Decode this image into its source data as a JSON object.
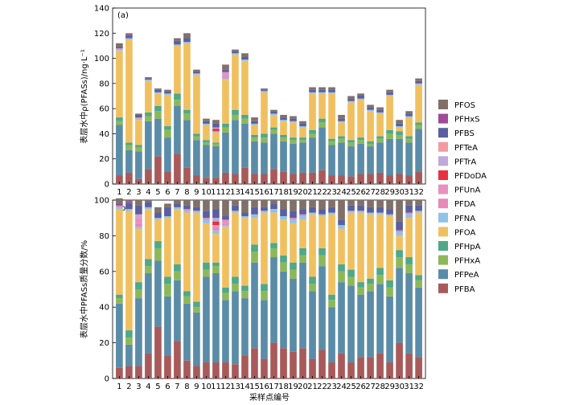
{
  "chart_data": [
    {
      "panel": "(a)",
      "type": "bar",
      "stacked": true,
      "ylabel": "表层水中ρ(PFASs)/ng·L⁻¹",
      "xlabel": "",
      "ylim": [
        0,
        140
      ],
      "yticks": [
        0,
        20,
        40,
        60,
        80,
        100,
        120,
        140
      ],
      "categories": [
        "1",
        "2",
        "3",
        "4",
        "5",
        "6",
        "7",
        "8",
        "9",
        "10",
        "11",
        "12",
        "13",
        "14",
        "15",
        "16",
        "17",
        "18",
        "19",
        "20",
        "21",
        "22",
        "23",
        "24",
        "25",
        "26",
        "27",
        "28",
        "29",
        "30",
        "31",
        "32"
      ],
      "series": [
        {
          "name": "PFBA",
          "values": [
            7,
            9,
            4,
            12,
            22,
            10,
            24,
            13,
            7,
            5,
            5,
            9,
            8,
            13,
            8,
            8,
            12,
            10,
            8,
            9,
            9,
            11,
            7,
            7,
            6,
            8,
            8,
            9,
            7,
            8,
            7,
            10
          ]
        },
        {
          "name": "PFPeA",
          "values": [
            40,
            18,
            22,
            38,
            30,
            27,
            38,
            38,
            28,
            26,
            25,
            32,
            43,
            35,
            26,
            25,
            28,
            24,
            24,
            24,
            28,
            34,
            24,
            26,
            24,
            24,
            22,
            24,
            29,
            28,
            26,
            34
          ]
        },
        {
          "name": "PFHxA",
          "values": [
            3,
            4,
            3,
            4,
            6,
            6,
            5,
            5,
            3,
            2,
            2,
            4,
            4,
            4,
            3,
            4,
            3,
            3,
            3,
            2,
            3,
            4,
            3,
            3,
            3,
            3,
            2,
            3,
            4,
            3,
            3,
            3
          ]
        },
        {
          "name": "PFHpA",
          "values": [
            3,
            2,
            2,
            3,
            4,
            3,
            5,
            3,
            2,
            2,
            1,
            3,
            4,
            3,
            2,
            3,
            2,
            2,
            2,
            2,
            3,
            3,
            2,
            2,
            2,
            2,
            2,
            2,
            3,
            3,
            2,
            2
          ]
        },
        {
          "name": "PFOA",
          "values": [
            53,
            82,
            20,
            25,
            10,
            25,
            38,
            53,
            47,
            12,
            8,
            35,
            44,
            43,
            8,
            33,
            10,
            11,
            12,
            8,
            29,
            20,
            36,
            11,
            30,
            30,
            24,
            18,
            27,
            3,
            15,
            30
          ]
        },
        {
          "name": "PFNA",
          "values": [
            1,
            1,
            1,
            1,
            1,
            1,
            1,
            1,
            1,
            1,
            1,
            1,
            1,
            1,
            1,
            1,
            1,
            1,
            1,
            1,
            1,
            1,
            1,
            1,
            1,
            1,
            1,
            1,
            1,
            1,
            1,
            1
          ]
        },
        {
          "name": "PFDA",
          "values": [
            1,
            0,
            1,
            0,
            0,
            0,
            0,
            0,
            0,
            0,
            0,
            1,
            0,
            0,
            0,
            0,
            0,
            0,
            0,
            0,
            0,
            0,
            0,
            0,
            0,
            0,
            0,
            0,
            0,
            0,
            0,
            0
          ]
        },
        {
          "name": "PFUnA",
          "values": [
            0,
            0,
            0,
            0,
            0,
            0,
            0,
            0,
            0,
            0,
            0,
            4,
            0,
            0,
            0,
            0,
            0,
            0,
            0,
            0,
            0,
            0,
            0,
            0,
            0,
            0,
            0,
            0,
            0,
            0,
            0,
            0
          ]
        },
        {
          "name": "PFDoDA",
          "values": [
            0,
            0,
            0,
            0,
            0,
            0,
            0,
            0,
            0,
            0,
            2,
            0,
            0,
            0,
            0,
            0,
            0,
            0,
            0,
            0,
            0,
            0,
            0,
            0,
            0,
            0,
            0,
            0,
            0,
            0,
            0,
            0
          ]
        },
        {
          "name": "PFTrA",
          "values": [
            0,
            0,
            0,
            0,
            0,
            0,
            0,
            0,
            0,
            0,
            1,
            0,
            0,
            0,
            0,
            0,
            0,
            0,
            0,
            0,
            0,
            0,
            0,
            0,
            0,
            0,
            0,
            0,
            0,
            0,
            0,
            0
          ]
        },
        {
          "name": "PFTeA",
          "values": [
            0,
            0,
            0,
            0,
            0,
            0,
            0,
            0,
            0,
            0,
            0,
            0,
            0,
            0,
            0,
            0,
            0,
            0,
            0,
            0,
            0,
            0,
            0,
            0,
            0,
            0,
            0,
            0,
            0,
            0,
            0,
            0
          ]
        },
        {
          "name": "PFBS",
          "values": [
            1,
            2,
            2,
            1,
            2,
            2,
            3,
            3,
            2,
            2,
            3,
            2,
            2,
            2,
            2,
            1,
            2,
            2,
            2,
            2,
            2,
            2,
            2,
            2,
            2,
            2,
            2,
            2,
            2,
            2,
            2,
            2
          ]
        },
        {
          "name": "PFHxS",
          "values": [
            0,
            1,
            0,
            0,
            0,
            0,
            0,
            0,
            0,
            0,
            0,
            0,
            0,
            0,
            0,
            0,
            0,
            0,
            0,
            0,
            0,
            0,
            0,
            0,
            0,
            0,
            0,
            0,
            0,
            0,
            0,
            0
          ]
        },
        {
          "name": "PFOS",
          "values": [
            3,
            1,
            1,
            1,
            1,
            1,
            2,
            4,
            1,
            2,
            3,
            4,
            1,
            3,
            3,
            1,
            1,
            2,
            2,
            2,
            2,
            2,
            2,
            3,
            2,
            2,
            2,
            2,
            2,
            3,
            2,
            2
          ]
        }
      ]
    },
    {
      "panel": "(b)",
      "type": "bar",
      "stacked": true,
      "ylabel": "表层水中PFASs质量分数/%",
      "xlabel": "采样点编号",
      "ylim": [
        0,
        100
      ],
      "yticks": [
        0,
        20,
        40,
        60,
        80,
        100
      ],
      "categories": [
        "1",
        "2",
        "3",
        "4",
        "5",
        "6",
        "7",
        "8",
        "9",
        "10",
        "11",
        "12",
        "13",
        "14",
        "15",
        "16",
        "17",
        "18",
        "19",
        "20",
        "21",
        "22",
        "23",
        "24",
        "25",
        "26",
        "27",
        "28",
        "29",
        "30",
        "31",
        "32"
      ],
      "series": [
        {
          "name": "PFBA",
          "values": [
            6,
            7,
            7,
            14,
            29,
            13,
            21,
            10,
            7,
            9,
            9,
            9,
            8,
            13,
            17,
            11,
            20,
            17,
            15,
            17,
            11,
            16,
            9,
            14,
            9,
            12,
            12,
            14,
            9,
            20,
            14,
            12
          ]
        },
        {
          "name": "PFPeA",
          "values": [
            36,
            12,
            38,
            45,
            37,
            33,
            34,
            32,
            30,
            48,
            50,
            35,
            41,
            32,
            48,
            33,
            48,
            43,
            41,
            48,
            38,
            47,
            31,
            40,
            43,
            35,
            37,
            39,
            37,
            42,
            45,
            39
          ]
        },
        {
          "name": "PFHxA",
          "values": [
            3,
            4,
            5,
            4,
            7,
            7,
            5,
            4,
            3,
            4,
            4,
            4,
            4,
            4,
            6,
            5,
            5,
            5,
            5,
            4,
            4,
            6,
            4,
            6,
            5,
            4,
            4,
            5,
            5,
            6,
            5,
            4
          ]
        },
        {
          "name": "PFHpA",
          "values": [
            2,
            4,
            4,
            4,
            4,
            4,
            4,
            3,
            3,
            4,
            2,
            3,
            4,
            3,
            4,
            4,
            3,
            4,
            4,
            4,
            4,
            4,
            3,
            4,
            4,
            3,
            3,
            4,
            4,
            4,
            4,
            3
          ]
        },
        {
          "name": "PFOA",
          "values": [
            48,
            67,
            30,
            28,
            12,
            33,
            31,
            44,
            50,
            22,
            16,
            34,
            36,
            38,
            15,
            40,
            17,
            20,
            22,
            16,
            35,
            18,
            45,
            20,
            32,
            39,
            36,
            30,
            36,
            8,
            22,
            35
          ]
        },
        {
          "name": "PFNA",
          "values": [
            1,
            1,
            1,
            1,
            1,
            1,
            1,
            1,
            1,
            2,
            2,
            1,
            1,
            1,
            2,
            1,
            2,
            2,
            2,
            2,
            1,
            1,
            1,
            2,
            1,
            1,
            1,
            1,
            1,
            2,
            2,
            1
          ]
        },
        {
          "name": "PFDA",
          "values": [
            1,
            0,
            2,
            0,
            0,
            0,
            0,
            1,
            0,
            1,
            2,
            1,
            0,
            0,
            0,
            0,
            0,
            0,
            1,
            1,
            0,
            0,
            0,
            0,
            0,
            0,
            0,
            0,
            0,
            1,
            1,
            0
          ]
        },
        {
          "name": "PFUnA",
          "values": [
            0,
            0,
            3,
            0,
            0,
            0,
            0,
            0,
            0,
            0,
            1,
            2,
            0,
            0,
            0,
            0,
            0,
            0,
            0,
            0,
            0,
            0,
            0,
            0,
            0,
            0,
            0,
            0,
            0,
            0,
            0,
            0
          ]
        },
        {
          "name": "PFDoDA",
          "values": [
            0,
            0,
            0,
            0,
            0,
            0,
            0,
            0,
            0,
            0,
            2,
            0,
            0,
            0,
            0,
            0,
            0,
            0,
            0,
            0,
            0,
            0,
            0,
            0,
            0,
            0,
            0,
            0,
            0,
            0,
            0,
            0
          ]
        },
        {
          "name": "PFTrA",
          "values": [
            0,
            0,
            1,
            0,
            0,
            0,
            0,
            0,
            0,
            0,
            2,
            0,
            0,
            0,
            0,
            0,
            0,
            0,
            0,
            0,
            0,
            0,
            0,
            0,
            0,
            0,
            0,
            0,
            0,
            0,
            0,
            0
          ]
        },
        {
          "name": "PFTeA",
          "values": [
            0,
            0,
            1,
            0,
            0,
            0,
            0,
            0,
            0,
            0,
            0,
            0,
            0,
            0,
            0,
            0,
            0,
            0,
            0,
            0,
            0,
            0,
            0,
            0,
            0,
            0,
            0,
            0,
            0,
            0,
            0,
            0
          ]
        },
        {
          "name": "PFBS",
          "values": [
            1,
            3,
            5,
            3,
            3,
            5,
            2,
            2,
            2,
            4,
            5,
            2,
            3,
            2,
            4,
            2,
            3,
            4,
            4,
            3,
            3,
            3,
            3,
            3,
            3,
            3,
            3,
            3,
            3,
            5,
            4,
            3
          ]
        },
        {
          "name": "PFHxS",
          "values": [
            0,
            1,
            0,
            0,
            0,
            0,
            0,
            0,
            0,
            0,
            0,
            0,
            0,
            0,
            0,
            0,
            0,
            0,
            0,
            0,
            0,
            0,
            0,
            0,
            0,
            0,
            0,
            0,
            0,
            0,
            0,
            0
          ]
        },
        {
          "name": "PFOS",
          "values": [
            3,
            1,
            3,
            1,
            3,
            2,
            2,
            3,
            4,
            6,
            5,
            9,
            3,
            7,
            4,
            4,
            2,
            5,
            6,
            5,
            4,
            5,
            4,
            11,
            3,
            3,
            4,
            4,
            5,
            12,
            3,
            3
          ]
        }
      ]
    }
  ],
  "legend": {
    "placement": "right",
    "order_top_to_bottom": [
      "PFOS",
      "PFHxS",
      "PFBS",
      "PFTeA",
      "PFTrA",
      "PFDoDA",
      "PFUnA",
      "PFDA",
      "PFNA",
      "PFOA",
      "PFHpA",
      "PFHxA",
      "PFPeA",
      "PFBA"
    ]
  },
  "colors": {
    "PFBA": "#a85a5a",
    "PFPeA": "#5a8ca8",
    "PFHxA": "#8db859",
    "PFHpA": "#4fa888",
    "PFOA": "#f0c060",
    "PFNA": "#8fc3e8",
    "PFDA": "#e889b8",
    "PFUnA": "#e890c0",
    "PFDoDA": "#e83040",
    "PFTrA": "#c0a8d8",
    "PFTeA": "#f49aa0",
    "PFBS": "#5a5fa0",
    "PFHxS": "#a04a98",
    "PFOS": "#807068"
  }
}
